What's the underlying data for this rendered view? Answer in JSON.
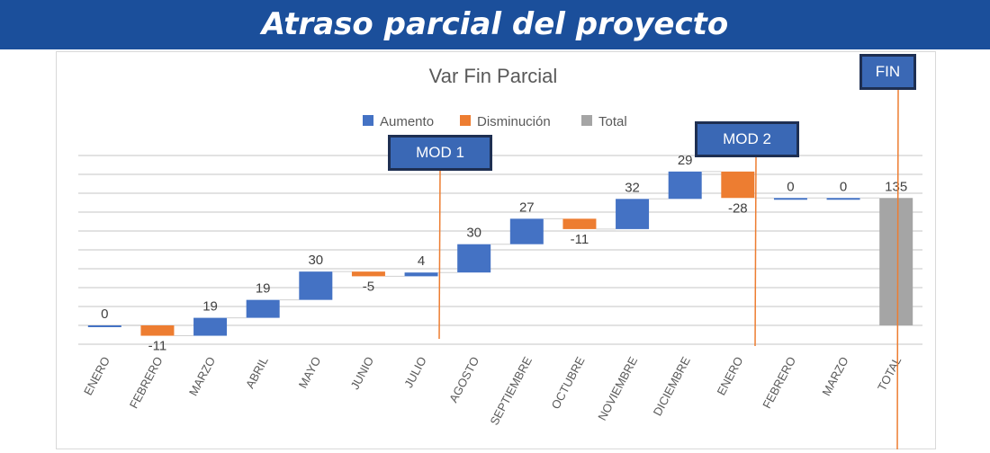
{
  "banner": {
    "title": "Atraso parcial del proyecto"
  },
  "markers": {
    "mod1": "MOD 1",
    "mod2": "MOD 2",
    "fin": "FIN"
  },
  "colors": {
    "increase": "#4472c4",
    "decrease": "#ed7d31",
    "total": "#a5a5a5",
    "marker_line": "#ed7d31",
    "banner": "#1b4f9b"
  },
  "chart_data": {
    "type": "waterfall",
    "title": "Var Fin Parcial",
    "legend": [
      "Aumento",
      "Disminución",
      "Total"
    ],
    "legend_position": "top",
    "categories": [
      "ENERO",
      "FEBRERO",
      "MARZO",
      "ABRIL",
      "MAYO",
      "JUNIO",
      "JULIO",
      "AGOSTO",
      "SEPTIEMBRE",
      "OCTUBRE",
      "NOVIEMBRE",
      "DICIEMBRE",
      "ENERO",
      "FEBRERO",
      "MARZO",
      "TOTAL"
    ],
    "values": [
      0,
      -11,
      19,
      19,
      30,
      -5,
      4,
      30,
      27,
      -11,
      32,
      29,
      -28,
      0,
      0,
      135
    ],
    "total_index": 15,
    "ylim": [
      -20,
      180
    ],
    "grid": true
  }
}
